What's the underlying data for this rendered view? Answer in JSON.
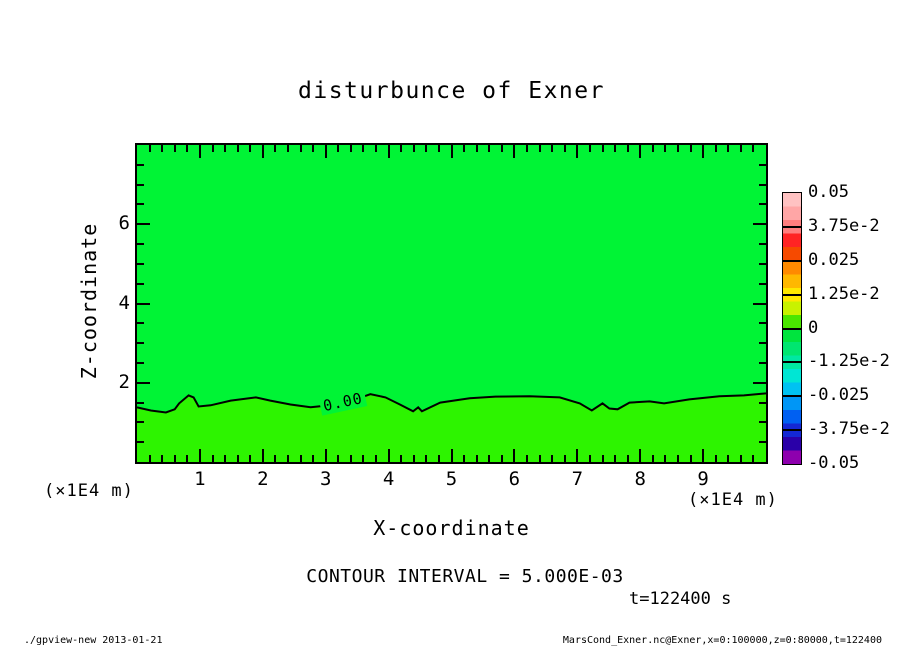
{
  "header": {
    "title": "disturbunce of Exner"
  },
  "axes": {
    "x_label": "X-coordinate",
    "y_label": "Z-coordinate",
    "x_tick_labels": [
      "1",
      "2",
      "3",
      "4",
      "5",
      "6",
      "7",
      "8",
      "9"
    ],
    "y_tick_labels": [
      "2",
      "4",
      "6"
    ],
    "xlim": [
      0,
      10
    ],
    "ylim": [
      0,
      8
    ]
  },
  "annotations": {
    "contour_interval": "CONTOUR INTERVAL = 5.000E-03",
    "time": "t=122400 s",
    "x_unit": "(×1E4 m)",
    "y_unit": "(×1E4 m)",
    "contour_label": "0.00"
  },
  "colorbar": {
    "tick_labels": [
      "0.05",
      "3.75e-2",
      "0.025",
      "1.25e-2",
      "0",
      "-1.25e-2",
      "-0.025",
      "-3.75e-2",
      "-0.05"
    ],
    "cell_colors": [
      "#ffc2c2",
      "#ffa6a6",
      "#ff7e7e",
      "#ff2424",
      "#f64a00",
      "#ff8a00",
      "#ffb800",
      "#ffe800",
      "#c8f200",
      "#4ae600",
      "#00e43e",
      "#00e670",
      "#00e8a2",
      "#00e6d4",
      "#00c2f2",
      "#0096f6",
      "#0060f2",
      "#1428d4",
      "#2a00a8",
      "#8e00ae"
    ]
  },
  "colors": {
    "fill_above_contour": "#00f435",
    "fill_below_contour": "#2df400",
    "axis": "#000000",
    "background": "#ffffff"
  },
  "footer": {
    "left": "./gpview-new  2013-01-21",
    "right": "MarsCond_Exner.nc@Exner,x=0:100000,z=0:80000,t=122400"
  },
  "chart_data": {
    "type": "heatmap",
    "subtype": "filled-contour-2d",
    "title": "disturbunce of Exner",
    "xlabel": "X-coordinate (×1E4 m)",
    "ylabel": "Z-coordinate (×1E4 m)",
    "xlim": [
      0,
      10
    ],
    "ylim": [
      0,
      8
    ],
    "x_ticks": [
      1,
      2,
      3,
      4,
      5,
      6,
      7,
      8,
      9
    ],
    "y_ticks": [
      2,
      4,
      6
    ],
    "x_minor_step": 0.2,
    "y_minor_step": 0.5,
    "contour_interval": 0.005,
    "colorbar_levels": [
      0.05,
      0.0375,
      0.025,
      0.0125,
      0,
      -0.0125,
      -0.025,
      -0.0375,
      -0.05
    ],
    "time_seconds": 122400,
    "field_note": "field is within one contour interval of zero everywhere; a single 0.00 contour runs near z≈1.5e4 m separating the two near-zero color bins",
    "zero_contour_points": [
      [
        0.0,
        1.38
      ],
      [
        0.22,
        1.3
      ],
      [
        0.46,
        1.25
      ],
      [
        0.6,
        1.33
      ],
      [
        0.67,
        1.48
      ],
      [
        0.82,
        1.68
      ],
      [
        0.9,
        1.63
      ],
      [
        0.98,
        1.4
      ],
      [
        1.17,
        1.43
      ],
      [
        1.49,
        1.55
      ],
      [
        1.89,
        1.63
      ],
      [
        2.12,
        1.55
      ],
      [
        2.44,
        1.45
      ],
      [
        2.76,
        1.38
      ],
      [
        3.07,
        1.43
      ],
      [
        3.47,
        1.58
      ],
      [
        3.71,
        1.71
      ],
      [
        3.95,
        1.63
      ],
      [
        4.18,
        1.45
      ],
      [
        4.39,
        1.28
      ],
      [
        4.47,
        1.38
      ],
      [
        4.53,
        1.28
      ],
      [
        4.82,
        1.5
      ],
      [
        5.29,
        1.61
      ],
      [
        5.7,
        1.65
      ],
      [
        6.24,
        1.66
      ],
      [
        6.72,
        1.63
      ],
      [
        7.04,
        1.48
      ],
      [
        7.23,
        1.3
      ],
      [
        7.4,
        1.48
      ],
      [
        7.51,
        1.35
      ],
      [
        7.64,
        1.33
      ],
      [
        7.83,
        1.5
      ],
      [
        8.15,
        1.53
      ],
      [
        8.38,
        1.48
      ],
      [
        8.78,
        1.58
      ],
      [
        9.26,
        1.66
      ],
      [
        9.65,
        1.68
      ],
      [
        10.0,
        1.73
      ]
    ]
  }
}
